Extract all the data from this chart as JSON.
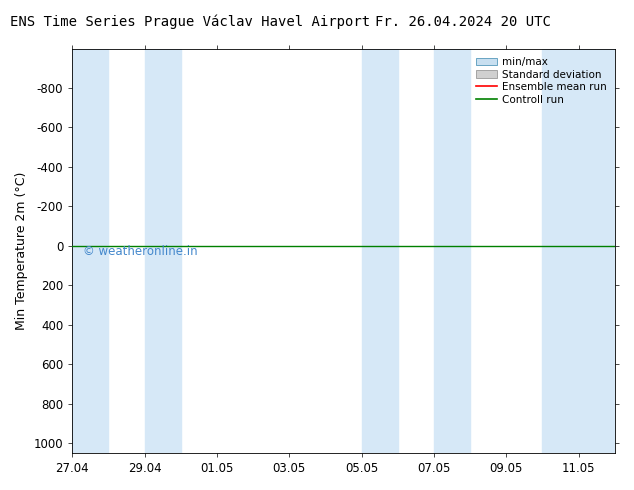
{
  "title_left": "ENS Time Series Prague Václav Havel Airport",
  "title_right": "Fr. 26.04.2024 20 UTC",
  "ylabel": "Min Temperature 2m (°C)",
  "ylim_top": -1000,
  "ylim_bottom": 1050,
  "yticks": [
    -800,
    -600,
    -400,
    -200,
    0,
    200,
    400,
    600,
    800,
    1000
  ],
  "xtick_labels": [
    "27.04",
    "29.04",
    "01.05",
    "03.05",
    "05.05",
    "07.05",
    "09.05",
    "11.05"
  ],
  "xtick_positions": [
    0,
    2,
    4,
    6,
    8,
    10,
    12,
    14
  ],
  "xlim": [
    0,
    15
  ],
  "fig_bg_color": "#ffffff",
  "plot_bg_color": "#ffffff",
  "band_color": "#d6e8f7",
  "green_line_color": "#008000",
  "red_line_color": "#ff0000",
  "watermark": "© weatheronline.in",
  "watermark_color": "#4488cc",
  "legend_labels": [
    "min/max",
    "Standard deviation",
    "Ensemble mean run",
    "Controll run"
  ],
  "minmax_color": "#c8dff0",
  "std_color": "#d0d0d0",
  "band_positions": [
    [
      0,
      1
    ],
    [
      2,
      3
    ],
    [
      8,
      9
    ],
    [
      10,
      11
    ],
    [
      13,
      15
    ]
  ],
  "figsize": [
    6.34,
    4.9
  ],
  "dpi": 100
}
